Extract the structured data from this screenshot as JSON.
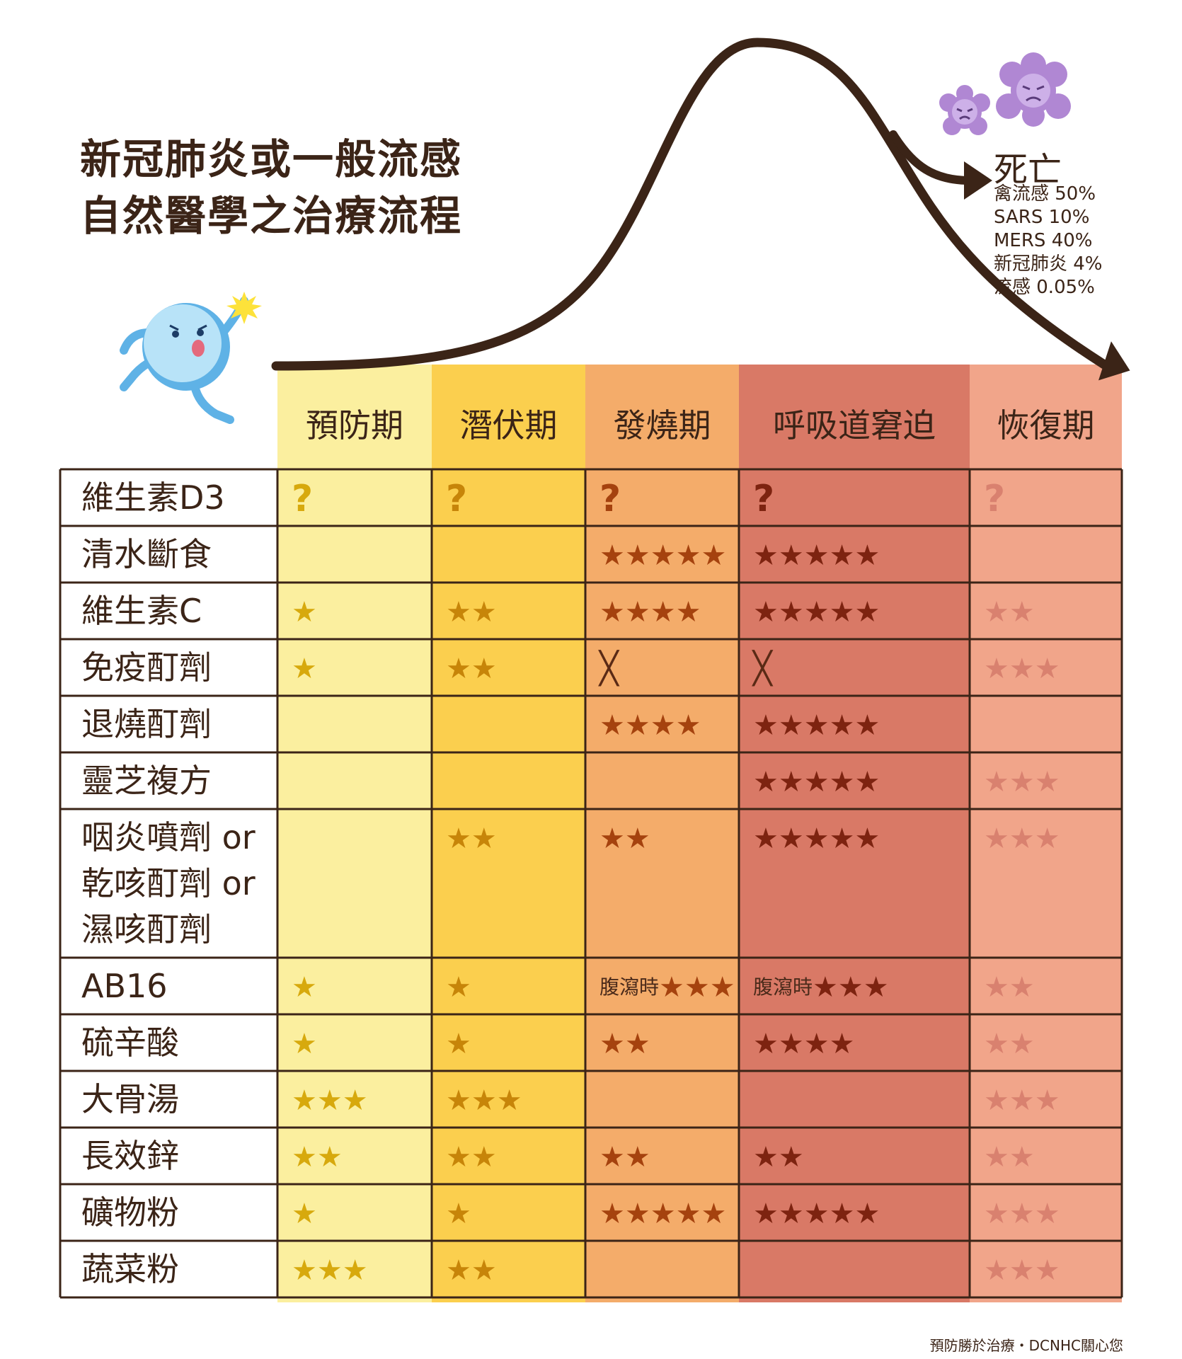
{
  "title": {
    "line1": "新冠肺炎或一般流感",
    "line2": "自然醫學之治療流程"
  },
  "death": {
    "label": "死亡",
    "rates": [
      "禽流感 50%",
      "SARS 10%",
      "MERS 40%",
      "新冠肺炎 4%",
      "流感 0.05%"
    ]
  },
  "colors": {
    "stage1": "#fbef9f",
    "stage2": "#fbcf4e",
    "stage3": "#f4ac6a",
    "stage4": "#d97966",
    "stage5": "#f1a58a",
    "star1": "#d7a90d",
    "star2": "#c78509",
    "star3": "#a5420e",
    "star4": "#7d2310",
    "star5": "#d9816f",
    "line": "#3b2417"
  },
  "phases": [
    "預防期",
    "潛伏期",
    "發燒期",
    "呼吸道窘迫",
    "恢復期"
  ],
  "rows": [
    {
      "name": [
        "維生素D3"
      ],
      "cells": [
        "?",
        "?",
        "?",
        "?",
        "?"
      ]
    },
    {
      "name": [
        "清水斷食"
      ],
      "cells": [
        "",
        "",
        "★★★★★",
        "★★★★★",
        ""
      ]
    },
    {
      "name": [
        "維生素C"
      ],
      "cells": [
        "★",
        "★★",
        "★★★★",
        "★★★★★",
        "★★"
      ]
    },
    {
      "name": [
        "免疫酊劑"
      ],
      "cells": [
        "★",
        "★★",
        "╳",
        "╳",
        "★★★"
      ]
    },
    {
      "name": [
        "退燒酊劑"
      ],
      "cells": [
        "",
        "",
        "★★★★",
        "★★★★★",
        ""
      ]
    },
    {
      "name": [
        "靈芝複方"
      ],
      "cells": [
        "",
        "",
        "",
        "★★★★★",
        "★★★"
      ]
    },
    {
      "name": [
        "咽炎噴劑 or",
        "乾咳酊劑 or",
        "濕咳酊劑"
      ],
      "cells": [
        "",
        "★★",
        "★★",
        "★★★★★",
        "★★★"
      ]
    },
    {
      "name": [
        "AB16"
      ],
      "cells": [
        "★",
        "★",
        "★★★",
        "★★★",
        "★★"
      ],
      "notes": [
        "",
        "",
        "腹瀉時",
        "腹瀉時",
        ""
      ]
    },
    {
      "name": [
        "硫辛酸"
      ],
      "cells": [
        "★",
        "★",
        "★★",
        "★★★★",
        "★★"
      ]
    },
    {
      "name": [
        "大骨湯"
      ],
      "cells": [
        "★★★",
        "★★★",
        "",
        "",
        "★★★"
      ]
    },
    {
      "name": [
        "長效鋅"
      ],
      "cells": [
        "★★",
        "★★",
        "★★",
        "★★",
        "★★"
      ]
    },
    {
      "name": [
        "礦物粉"
      ],
      "cells": [
        "★",
        "★",
        "★★★★★",
        "★★★★★",
        "★★★"
      ]
    },
    {
      "name": [
        "蔬菜粉"
      ],
      "cells": [
        "★★★",
        "★★",
        "",
        "",
        "★★★"
      ]
    }
  ],
  "footer": "預防勝於治療・DCNHC關心您"
}
